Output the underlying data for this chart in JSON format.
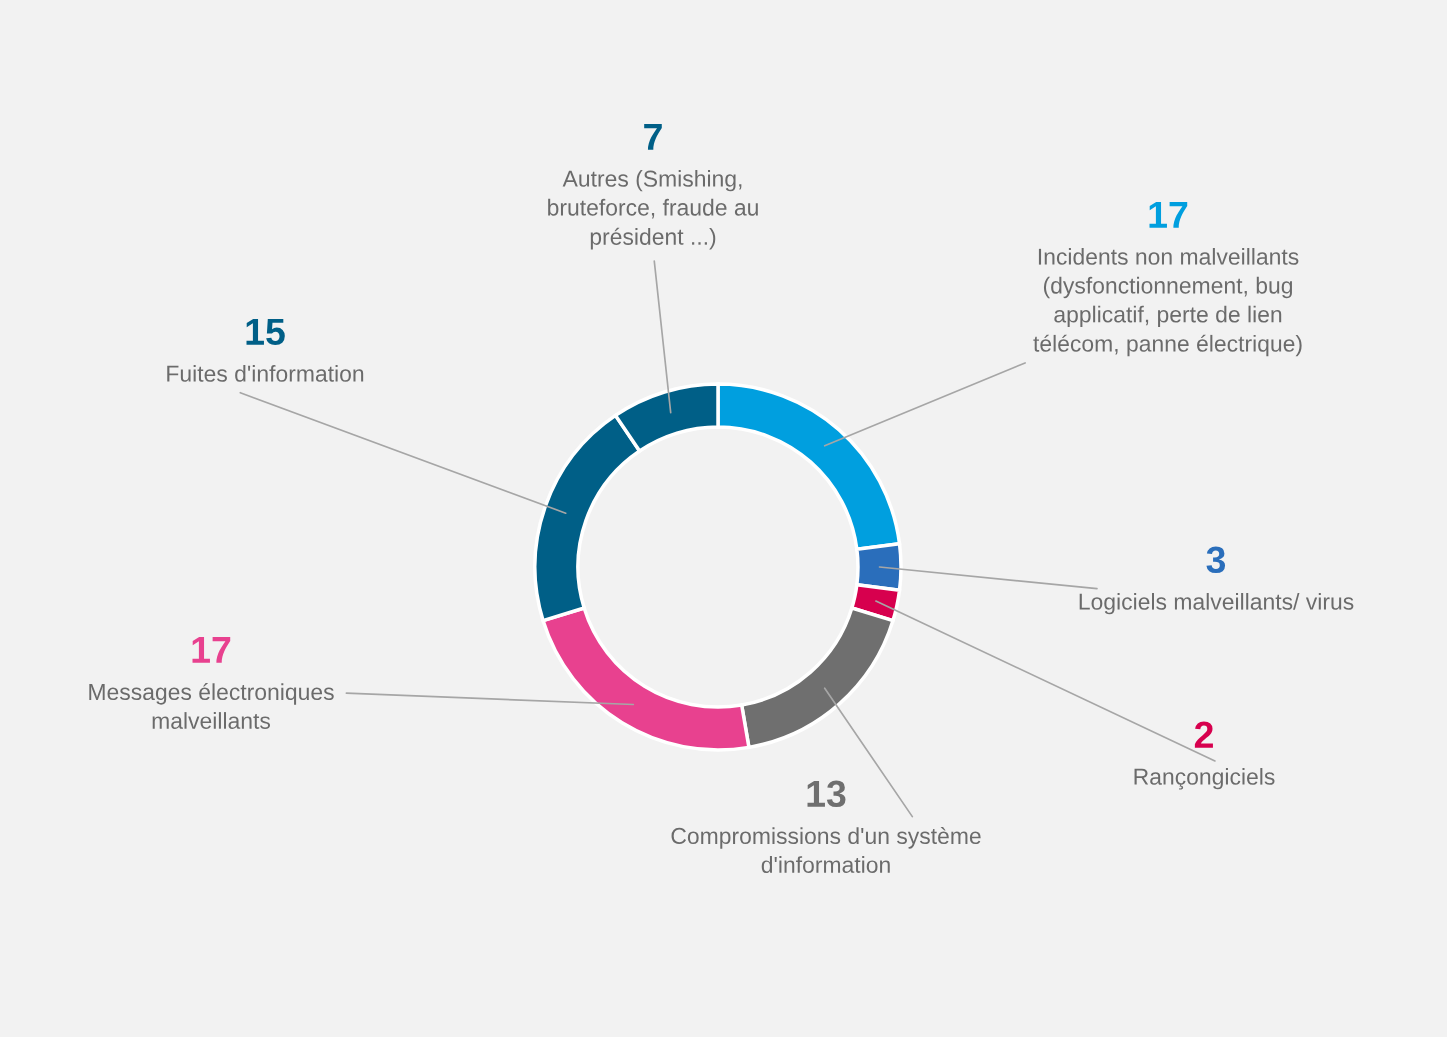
{
  "chart_data": {
    "type": "donut",
    "categories": [
      "Incidents non malveillants\n(dysfonctionnement, bug\napplicatif, perte de lien\ntélécom, panne électrique)",
      "Logiciels malveillants/ virus",
      "Rançongiciels",
      "Compromissions d'un système\nd'information",
      "Messages électroniques\nmalveillants",
      "Fuites d'information",
      "Autres (Smishing,\nbruteforce, fraude au\nprésident ...)"
    ],
    "values": [
      17,
      3,
      2,
      13,
      17,
      15,
      7
    ],
    "colors": [
      "#009fdf",
      "#2a6ebb",
      "#d7004e",
      "#6f6f6f",
      "#e8418f",
      "#005f87",
      "#005f87"
    ],
    "data_labels": true
  }
}
